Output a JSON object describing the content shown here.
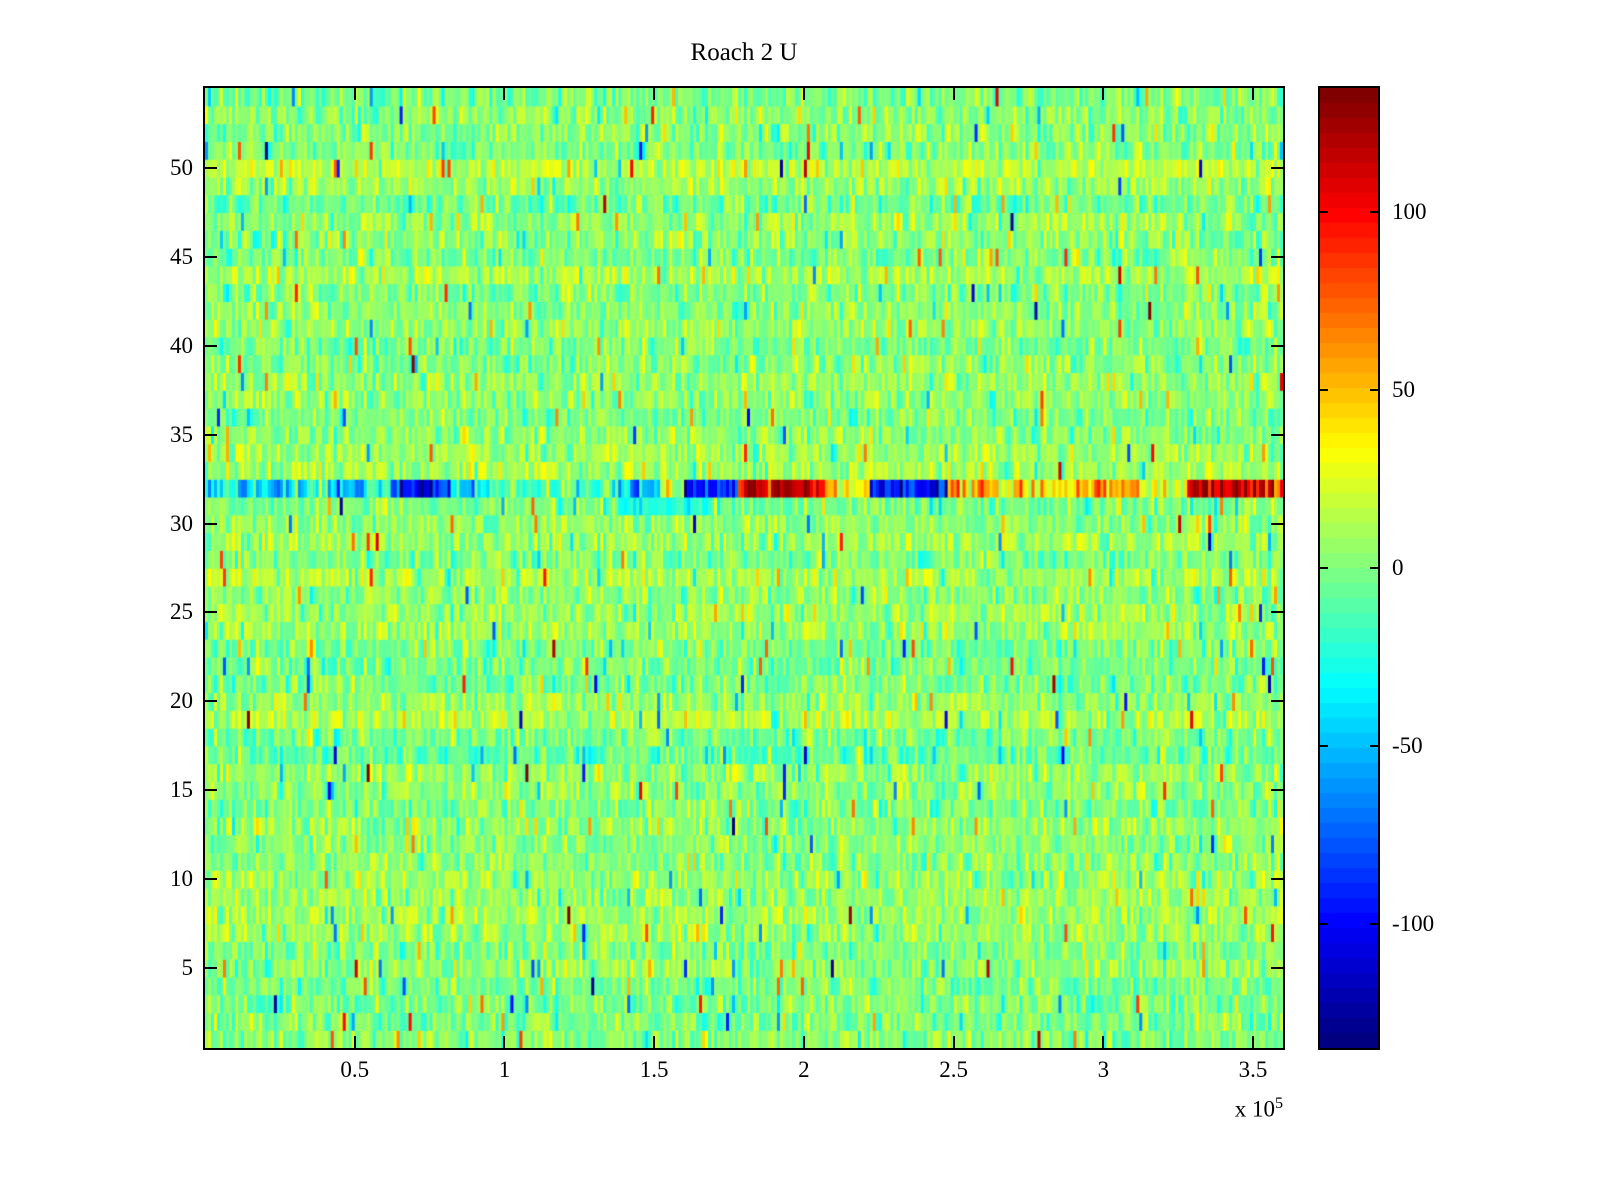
{
  "chart_data": {
    "type": "heatmap",
    "title": "Roach 2 U",
    "xlabel": "",
    "ylabel": "",
    "x_range": [
      0,
      360000
    ],
    "x_tick_values": [
      50000,
      100000,
      150000,
      200000,
      250000,
      300000,
      350000
    ],
    "x_tick_labels": [
      "0.5",
      "1",
      "1.5",
      "2",
      "2.5",
      "3",
      "3.5"
    ],
    "x_exponent_label": "x 10",
    "x_exponent": "5",
    "y_range": [
      0.5,
      54.5
    ],
    "y_tick_values": [
      5,
      10,
      15,
      20,
      25,
      30,
      35,
      40,
      45,
      50
    ],
    "y_tick_labels": [
      "5",
      "10",
      "15",
      "20",
      "25",
      "30",
      "35",
      "40",
      "45",
      "50"
    ],
    "rows": 54,
    "cols": 360,
    "colormap": "jet",
    "clim": [
      -135,
      135
    ],
    "colorbar_tick_values": [
      -100,
      -50,
      0,
      50,
      100
    ],
    "colorbar_tick_labels": [
      "-100",
      "-50",
      "0",
      "50",
      "100"
    ],
    "colorbar_levels": 64,
    "grid": false,
    "background_color": "#ffffff",
    "axis_color": "#000000",
    "noise": {
      "seed": 1337,
      "mean": 4,
      "std": 13,
      "speck_prob": 0.06,
      "speck_std": 45,
      "row_offset_std": 5
    },
    "anomaly_rows": [
      {
        "row": 32,
        "noise_std": 22,
        "segments": [
          [
            0,
            10000,
            -25
          ],
          [
            10000,
            30000,
            -45
          ],
          [
            30000,
            42000,
            -18
          ],
          [
            42000,
            55000,
            -50
          ],
          [
            55000,
            62000,
            -28
          ],
          [
            62000,
            82000,
            -95
          ],
          [
            82000,
            95000,
            -40
          ],
          [
            95000,
            110000,
            -22
          ],
          [
            110000,
            138000,
            -12
          ],
          [
            138000,
            152000,
            -55
          ],
          [
            152000,
            160000,
            35
          ],
          [
            160000,
            178000,
            -90
          ],
          [
            178000,
            208000,
            115
          ],
          [
            208000,
            222000,
            40
          ],
          [
            222000,
            248000,
            -100
          ],
          [
            248000,
            262000,
            65
          ],
          [
            262000,
            285000,
            40
          ],
          [
            285000,
            312000,
            55
          ],
          [
            312000,
            328000,
            25
          ],
          [
            328000,
            360000,
            118
          ]
        ]
      },
      {
        "row": 31,
        "noise_std": 10,
        "segments": [
          [
            138000,
            168000,
            -28
          ]
        ]
      }
    ]
  }
}
